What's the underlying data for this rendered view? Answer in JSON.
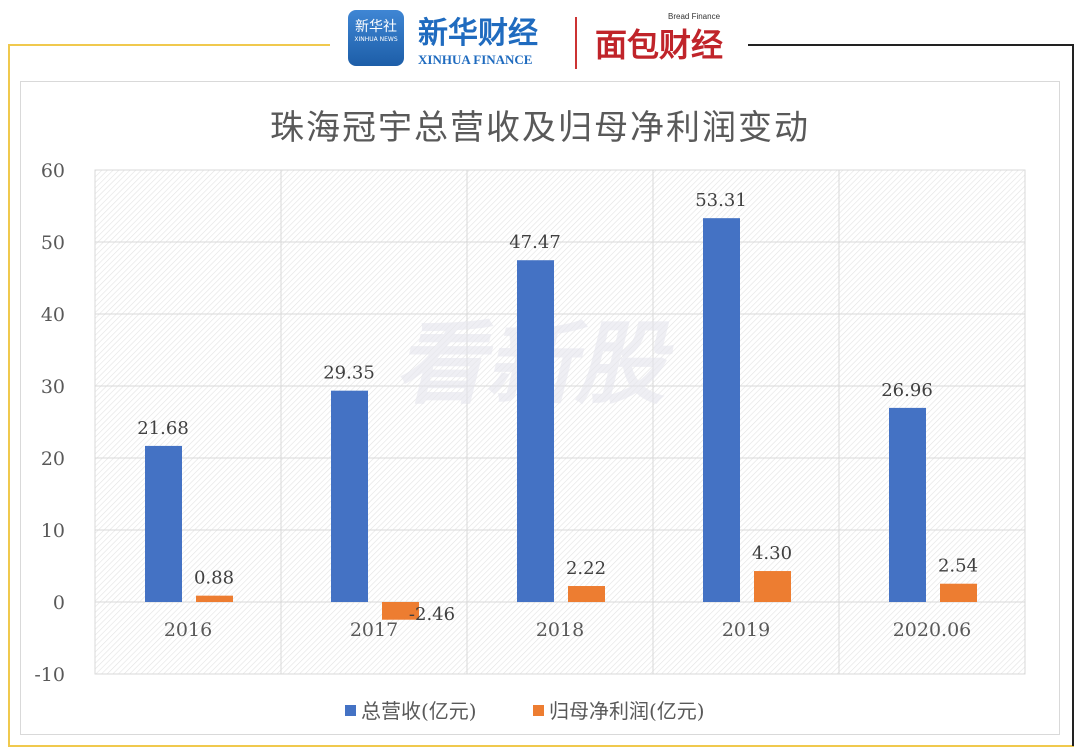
{
  "header": {
    "logo_xinhua": "新华社",
    "logo_xinhua_sub": "XINHUA NEWS",
    "logo_xinhua_finance": "新华财经",
    "logo_xinhua_finance_en": "XINHUA FINANCE",
    "logo_bread": "面包财经",
    "logo_bread_en": "Bread Finance"
  },
  "watermark": "看新股",
  "colors": {
    "revenue": "#4472c4",
    "profit": "#ed7d31",
    "frame_yellow": "#f0c94d"
  },
  "chart_data": {
    "type": "bar",
    "title": "珠海冠宇总营收及归母净利润变动",
    "categories": [
      "2016",
      "2017",
      "2018",
      "2019",
      "2020.06"
    ],
    "series": [
      {
        "name": "总营收(亿元)",
        "values": [
          21.68,
          29.35,
          47.47,
          53.31,
          26.96
        ],
        "labels": [
          "21.68",
          "29.35",
          "47.47",
          "53.31",
          "26.96"
        ]
      },
      {
        "name": "归母净利润(亿元)",
        "values": [
          0.88,
          -2.46,
          2.22,
          4.3,
          2.54
        ],
        "labels": [
          "0.88",
          "-2.46",
          "2.22",
          "4.30",
          "2.54"
        ]
      }
    ],
    "ylim": [
      -10,
      60
    ],
    "yticks": [
      "60",
      "50",
      "40",
      "30",
      "20",
      "10",
      "0",
      "-10"
    ],
    "ytick_values": [
      60,
      50,
      40,
      30,
      20,
      10,
      0,
      -10
    ],
    "grid": true,
    "legend": "bottom"
  }
}
